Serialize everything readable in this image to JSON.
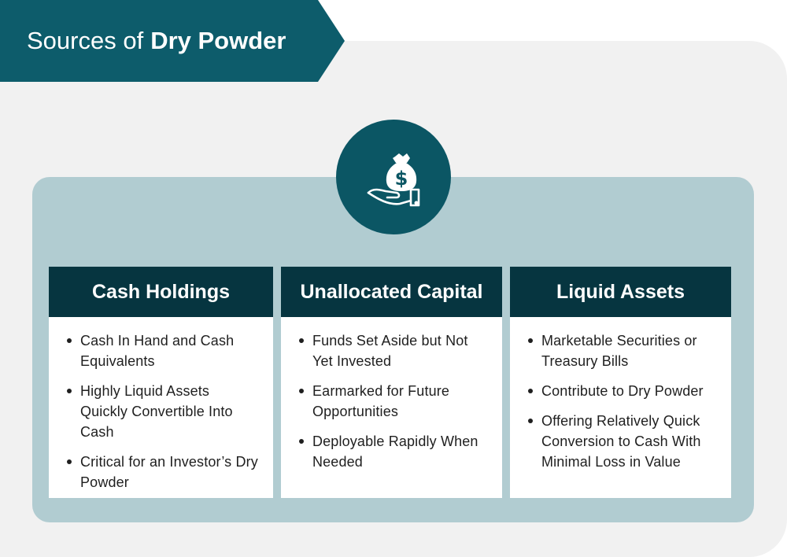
{
  "title": {
    "prefix": "Sources of",
    "bold": "Dry Powder"
  },
  "icon": "money-bag-hand-icon",
  "colors": {
    "banner": "#0d5c6b",
    "header": "#063540",
    "panel": "#b1ccd1",
    "background": "#f1f1f1"
  },
  "columns": [
    {
      "heading": "Cash Holdings",
      "items": [
        "Cash In Hand and Cash Equivalents",
        "Highly Liquid Assets Quickly Convertible Into Cash",
        "Critical for an Investor’s Dry Powder"
      ]
    },
    {
      "heading": "Unallocated Capital",
      "items": [
        "Funds Set Aside but Not Yet Invested",
        "Earmarked for Future Opportunities",
        "Deployable Rapidly When Needed"
      ]
    },
    {
      "heading": "Liquid Assets",
      "items": [
        "Marketable Securities or Treasury Bills",
        "Contribute to Dry Powder",
        "Offering Relatively Quick Conversion to Cash With Minimal Loss in Value"
      ]
    }
  ]
}
